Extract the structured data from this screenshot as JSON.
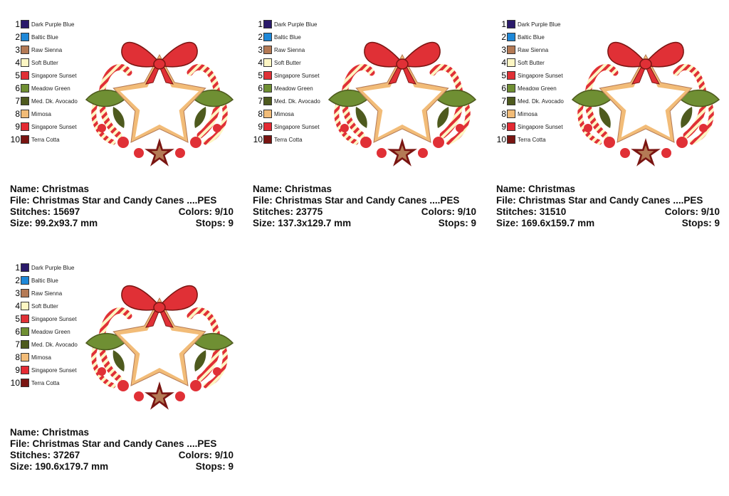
{
  "palette": [
    {
      "num": "1",
      "name": "Dark Purple Blue",
      "color": "#2a1a6b"
    },
    {
      "num": "2",
      "name": "Baltic Blue",
      "color": "#1e88d8"
    },
    {
      "num": "3",
      "name": "Raw Sienna",
      "color": "#b47a55"
    },
    {
      "num": "4",
      "name": "Soft Butter",
      "color": "#fdf6c3"
    },
    {
      "num": "5",
      "name": "Singapore Sunset",
      "color": "#e03036"
    },
    {
      "num": "6",
      "name": "Meadow Green",
      "color": "#6f8f33"
    },
    {
      "num": "7",
      "name": "Med. Dk. Avocado",
      "color": "#4e5a1e"
    },
    {
      "num": "8",
      "name": "Mimosa",
      "color": "#f2bc78"
    },
    {
      "num": "9",
      "name": "Singapore Sunset",
      "color": "#e42a33"
    },
    {
      "num": "10",
      "name": "Terra Cotta",
      "color": "#7a1512"
    }
  ],
  "cards": [
    {
      "name": "Name: Christmas",
      "file": "File: Christmas Star and Candy Canes ....PES",
      "stitches": "Stitches: 15697",
      "colors": "Colors: 9/10",
      "size": "Size: 99.2x93.7 mm",
      "stops": "Stops: 9"
    },
    {
      "name": "Name: Christmas",
      "file": "File: Christmas Star and Candy Canes ....PES",
      "stitches": "Stitches: 23775",
      "colors": "Colors: 9/10",
      "size": "Size: 137.3x129.7 mm",
      "stops": "Stops: 9"
    },
    {
      "name": "Name: Christmas",
      "file": "File: Christmas Star and Candy Canes ....PES",
      "stitches": "Stitches: 31510",
      "colors": "Colors: 9/10",
      "size": "Size: 169.6x159.7 mm",
      "stops": "Stops: 9"
    },
    {
      "name": "Name: Christmas",
      "file": "File: Christmas Star and Candy Canes ....PES",
      "stitches": "Stitches: 37267",
      "colors": "Colors: 9/10",
      "size": "Size: 190.6x179.7 mm",
      "stops": "Stops: 9"
    }
  ]
}
